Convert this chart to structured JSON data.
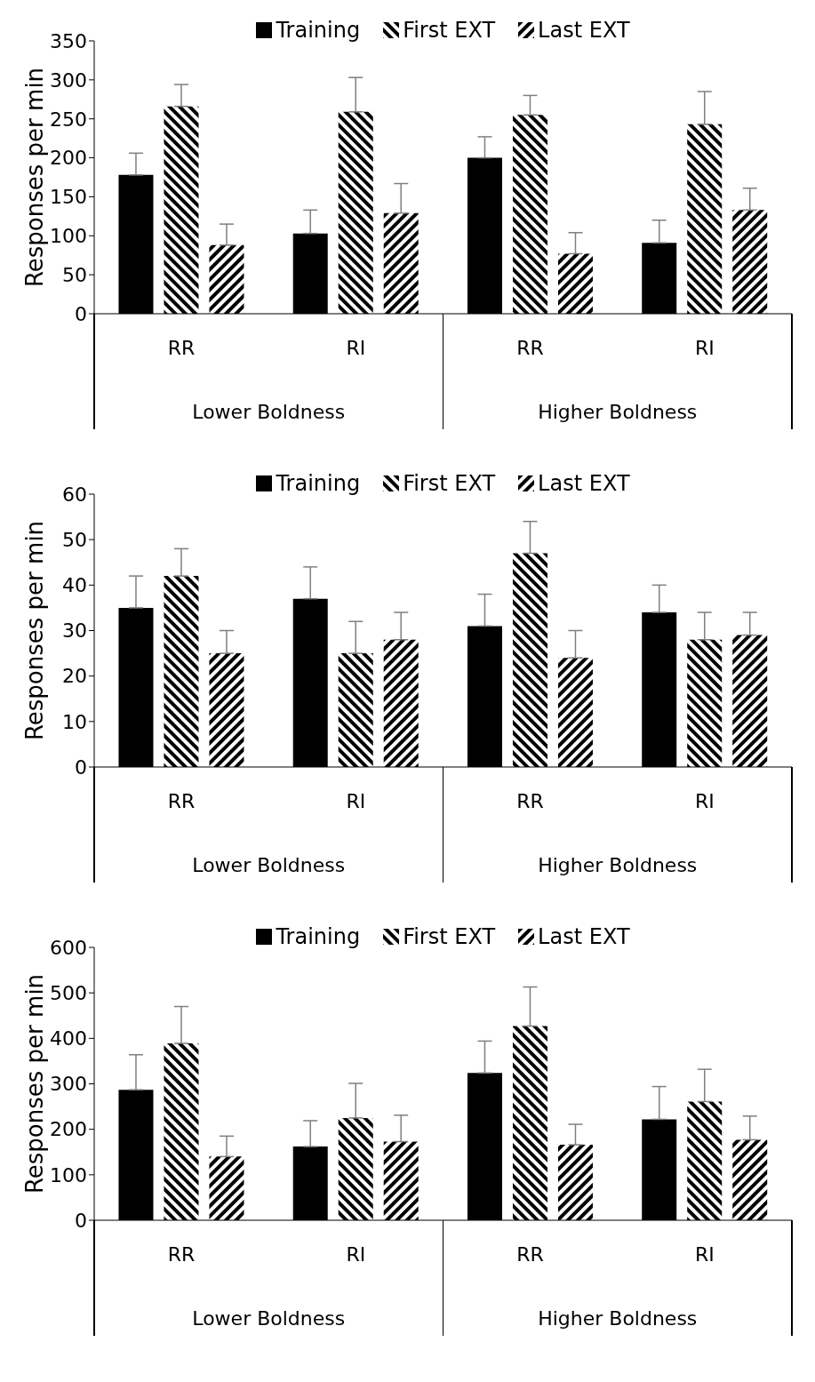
{
  "chart_data": [
    {
      "type": "bar",
      "ylabel": "Responses per min",
      "categories": [
        "RR",
        "RI",
        "RR",
        "RI"
      ],
      "annotations": [
        "Lower Boldness",
        "Higher Boldness"
      ],
      "ylim": [
        0,
        350
      ],
      "yticks": [
        0,
        50,
        100,
        150,
        200,
        250,
        300,
        350
      ],
      "legend": "top",
      "grid": false,
      "series": [
        {
          "name": "Training",
          "color": "#000000",
          "values": [
            178,
            103,
            200,
            91
          ],
          "errors": [
            [
              178,
              206
            ],
            [
              103,
              133
            ],
            [
              200,
              227
            ],
            [
              91,
              120
            ]
          ]
        },
        {
          "name": "First EXT",
          "color": "#000000",
          "values": [
            266,
            259,
            255,
            243
          ],
          "errors": [
            [
              266,
              294
            ],
            [
              259,
              303
            ],
            [
              255,
              280
            ],
            [
              243,
              285
            ]
          ]
        },
        {
          "name": "Last EXT",
          "color": "#000000",
          "values": [
            88,
            129,
            77,
            133
          ],
          "errors": [
            [
              88,
              115
            ],
            [
              129,
              167
            ],
            [
              77,
              104
            ],
            [
              133,
              161
            ]
          ]
        }
      ]
    },
    {
      "type": "bar",
      "ylabel": "Responses per min",
      "categories": [
        "RR",
        "RI",
        "RR",
        "RI"
      ],
      "annotations": [
        "Lower Boldness",
        "Higher Boldness"
      ],
      "ylim": [
        0,
        60
      ],
      "yticks": [
        0,
        10,
        20,
        30,
        40,
        50,
        60
      ],
      "legend": "top",
      "grid": false,
      "series": [
        {
          "name": "Training",
          "color": "#000000",
          "values": [
            35,
            37,
            31,
            34
          ],
          "errors": [
            [
              35,
              42
            ],
            [
              37,
              44
            ],
            [
              31,
              38
            ],
            [
              34,
              40
            ]
          ]
        },
        {
          "name": "First EXT",
          "color": "#000000",
          "values": [
            42,
            25,
            47,
            28
          ],
          "errors": [
            [
              42,
              48
            ],
            [
              25,
              32
            ],
            [
              47,
              54
            ],
            [
              28,
              34
            ]
          ]
        },
        {
          "name": "Last EXT",
          "color": "#000000",
          "values": [
            25,
            28,
            24,
            29
          ],
          "errors": [
            [
              25,
              30
            ],
            [
              28,
              34
            ],
            [
              24,
              30
            ],
            [
              29,
              34
            ]
          ]
        }
      ]
    },
    {
      "type": "bar",
      "ylabel": "Responses per min",
      "categories": [
        "RR",
        "RI",
        "RR",
        "RI"
      ],
      "annotations": [
        "Lower Boldness",
        "Higher Boldness"
      ],
      "ylim": [
        0,
        600
      ],
      "yticks": [
        0,
        100,
        200,
        300,
        400,
        500,
        600
      ],
      "legend": "top",
      "grid": false,
      "series": [
        {
          "name": "Training",
          "color": "#000000",
          "values": [
            287,
            162,
            324,
            222
          ],
          "errors": [
            [
              287,
              364
            ],
            [
              162,
              219
            ],
            [
              324,
              394
            ],
            [
              222,
              294
            ]
          ]
        },
        {
          "name": "First EXT",
          "color": "#000000",
          "values": [
            389,
            225,
            427,
            261
          ],
          "errors": [
            [
              389,
              470
            ],
            [
              225,
              301
            ],
            [
              427,
              513
            ],
            [
              261,
              332
            ]
          ]
        },
        {
          "name": "Last EXT",
          "color": "#000000",
          "values": [
            140,
            173,
            166,
            177
          ],
          "errors": [
            [
              140,
              185
            ],
            [
              173,
              231
            ],
            [
              166,
              211
            ],
            [
              177,
              229
            ]
          ]
        }
      ]
    }
  ]
}
